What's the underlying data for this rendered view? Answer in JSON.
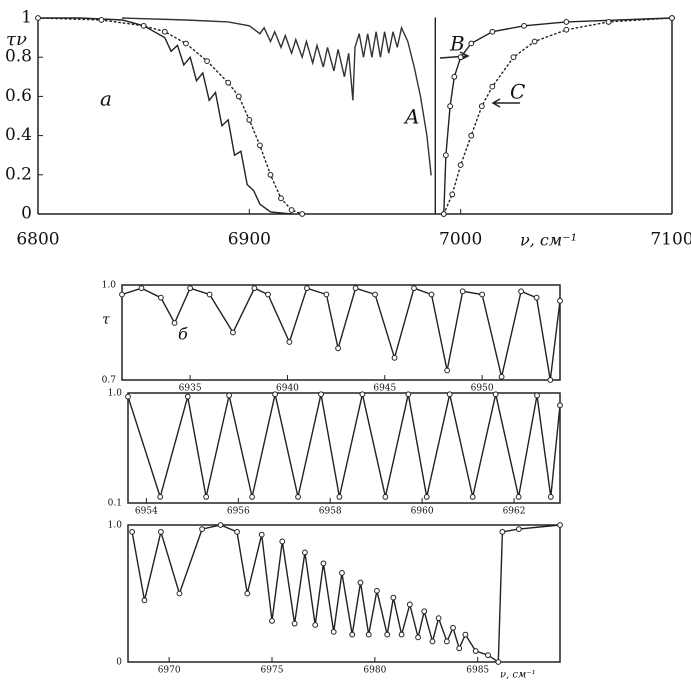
{
  "chart_data": [
    {
      "type": "line",
      "ylabel": "τν",
      "xlabel": "ν, см⁻¹",
      "annotations": [
        "a",
        "A",
        "B",
        "C"
      ],
      "xlim": [
        6800,
        7100
      ],
      "ylim": [
        0,
        1
      ],
      "xticks": [
        6800,
        6900,
        7000,
        7100
      ],
      "yticks": [
        0,
        0.2,
        0.4,
        0.6,
        0.8,
        1
      ],
      "series": [
        {
          "color": "#222",
          "style": "solid",
          "marker": false,
          "x": [
            6800,
            6820,
            6840,
            6850,
            6855,
            6860,
            6863,
            6866,
            6869,
            6872,
            6875,
            6878,
            6881,
            6884,
            6887,
            6890,
            6893,
            6896,
            6899,
            6902,
            6905,
            6910,
            6920
          ],
          "values": [
            1,
            1,
            0.99,
            0.96,
            0.93,
            0.9,
            0.83,
            0.86,
            0.76,
            0.8,
            0.68,
            0.72,
            0.58,
            0.62,
            0.45,
            0.48,
            0.3,
            0.32,
            0.15,
            0.12,
            0.05,
            0.01,
            0
          ]
        },
        {
          "color": "#222",
          "style": "dotted",
          "marker": true,
          "x": [
            6800,
            6830,
            6850,
            6860,
            6870,
            6880,
            6890,
            6895,
            6900,
            6905,
            6910,
            6915,
            6920,
            6925
          ],
          "values": [
            1,
            0.99,
            0.96,
            0.93,
            0.87,
            0.78,
            0.67,
            0.6,
            0.48,
            0.35,
            0.2,
            0.08,
            0.02,
            0
          ]
        },
        {
          "color": "#333",
          "style": "solid",
          "marker": false,
          "x": [
            6840,
            6870,
            6890,
            6900,
            6905,
            6907,
            6910,
            6912,
            6915,
            6917,
            6920,
            6922,
            6925,
            6927,
            6930,
            6932,
            6935,
            6937,
            6940,
            6942,
            6945,
            6947,
            6949,
            6950,
            6952,
            6954,
            6956,
            6958,
            6960,
            6962,
            6964,
            6966,
            6968,
            6970,
            6972,
            6975,
            6978,
            6981,
            6984,
            6986
          ],
          "values": [
            1,
            0.99,
            0.98,
            0.96,
            0.92,
            0.95,
            0.88,
            0.93,
            0.85,
            0.91,
            0.82,
            0.89,
            0.8,
            0.88,
            0.77,
            0.86,
            0.75,
            0.85,
            0.73,
            0.84,
            0.7,
            0.82,
            0.58,
            0.85,
            0.92,
            0.8,
            0.92,
            0.8,
            0.93,
            0.8,
            0.93,
            0.82,
            0.93,
            0.85,
            0.95,
            0.88,
            0.75,
            0.6,
            0.4,
            0.2
          ]
        },
        {
          "color": "#222",
          "style": "solid",
          "marker": false,
          "x": [
            6988,
            6988
          ],
          "values": [
            0,
            1
          ]
        },
        {
          "color": "#222",
          "style": "solid",
          "marker": true,
          "x": [
            6992,
            6993,
            6995,
            6997,
            7000,
            7005,
            7015,
            7030,
            7050,
            7100
          ],
          "values": [
            0,
            0.3,
            0.55,
            0.7,
            0.8,
            0.87,
            0.93,
            0.96,
            0.98,
            1
          ]
        },
        {
          "color": "#222",
          "style": "dotted",
          "marker": true,
          "x": [
            6992,
            6996,
            7000,
            7005,
            7010,
            7015,
            7025,
            7035,
            7050,
            7070,
            7100
          ],
          "values": [
            0,
            0.1,
            0.25,
            0.4,
            0.55,
            0.65,
            0.8,
            0.88,
            0.94,
            0.98,
            1
          ]
        }
      ]
    },
    {
      "type": "line",
      "ylabel": "τ",
      "annotations": [
        "б"
      ],
      "xlim": [
        6931.5,
        6954
      ],
      "ylim": [
        0.7,
        1
      ],
      "xticks": [
        6935,
        6940,
        6945,
        6950
      ],
      "yticks": [
        {
          "value": 1,
          "label": "1.0"
        },
        0.7
      ],
      "series": [
        {
          "color": "#222",
          "style": "solid",
          "marker": true,
          "x": [
            6931.5,
            6932.5,
            6933.5,
            6934.2,
            6935,
            6936,
            6937.2,
            6938.3,
            6939,
            6940.1,
            6941,
            6942,
            6942.6,
            6943.5,
            6944.5,
            6945.5,
            6946.5,
            6947.4,
            6948.2,
            6949,
            6950,
            6951,
            6952,
            6952.8,
            6953.5,
            6954
          ],
          "values": [
            0.97,
            0.99,
            0.96,
            0.88,
            0.99,
            0.97,
            0.85,
            0.99,
            0.97,
            0.82,
            0.99,
            0.97,
            0.8,
            0.99,
            0.97,
            0.77,
            0.99,
            0.97,
            0.73,
            0.98,
            0.97,
            0.71,
            0.98,
            0.96,
            0.7,
            0.95
          ]
        }
      ]
    },
    {
      "type": "line",
      "xlim": [
        6953.6,
        6963
      ],
      "ylim": [
        0.1,
        1
      ],
      "xticks": [
        6954,
        6956,
        6958,
        6960,
        6962
      ],
      "yticks": [
        {
          "value": 1,
          "label": "1.0"
        },
        0.1
      ],
      "series": [
        {
          "color": "#222",
          "style": "solid",
          "marker": true,
          "x": [
            6953.6,
            6954.3,
            6954.9,
            6955.3,
            6955.8,
            6956.3,
            6956.8,
            6957.3,
            6957.8,
            6958.2,
            6958.7,
            6959.2,
            6959.7,
            6960.1,
            6960.6,
            6961.1,
            6961.6,
            6962.1,
            6962.5,
            6962.8,
            6963
          ],
          "values": [
            0.97,
            0.15,
            0.97,
            0.15,
            0.98,
            0.15,
            0.99,
            0.15,
            0.99,
            0.15,
            0.99,
            0.15,
            0.99,
            0.15,
            0.99,
            0.15,
            0.99,
            0.15,
            0.98,
            0.15,
            0.9
          ]
        }
      ]
    },
    {
      "type": "line",
      "xlabel": "ν, см⁻¹",
      "xlim": [
        6968,
        6989
      ],
      "ylim": [
        0,
        1
      ],
      "xticks": [
        6970,
        6975,
        6980,
        6985
      ],
      "yticks": [
        {
          "value": 1,
          "label": "1.0"
        },
        0
      ],
      "series": [
        {
          "color": "#222",
          "style": "solid",
          "marker": true,
          "x": [
            6968.2,
            6968.8,
            6969.6,
            6970.5,
            6971.6,
            6972.5,
            6973.3,
            6973.8,
            6974.5,
            6975,
            6975.5,
            6976.1,
            6976.6,
            6977.1,
            6977.5,
            6978,
            6978.4,
            6978.9,
            6979.3,
            6979.7,
            6980.1,
            6980.6,
            6980.9,
            6981.3,
            6981.7,
            6982.1,
            6982.4,
            6982.8,
            6983.1,
            6983.5,
            6983.8,
            6984.1,
            6984.4,
            6984.9,
            6985.5,
            6986,
            6986.2,
            6987,
            6989
          ],
          "values": [
            0.95,
            0.45,
            0.95,
            0.5,
            0.97,
            1,
            0.95,
            0.5,
            0.93,
            0.3,
            0.88,
            0.28,
            0.8,
            0.27,
            0.72,
            0.22,
            0.65,
            0.2,
            0.58,
            0.2,
            0.52,
            0.2,
            0.47,
            0.2,
            0.42,
            0.18,
            0.37,
            0.15,
            0.32,
            0.15,
            0.25,
            0.1,
            0.2,
            0.08,
            0.05,
            0,
            0.95,
            0.97,
            1
          ]
        }
      ]
    }
  ]
}
